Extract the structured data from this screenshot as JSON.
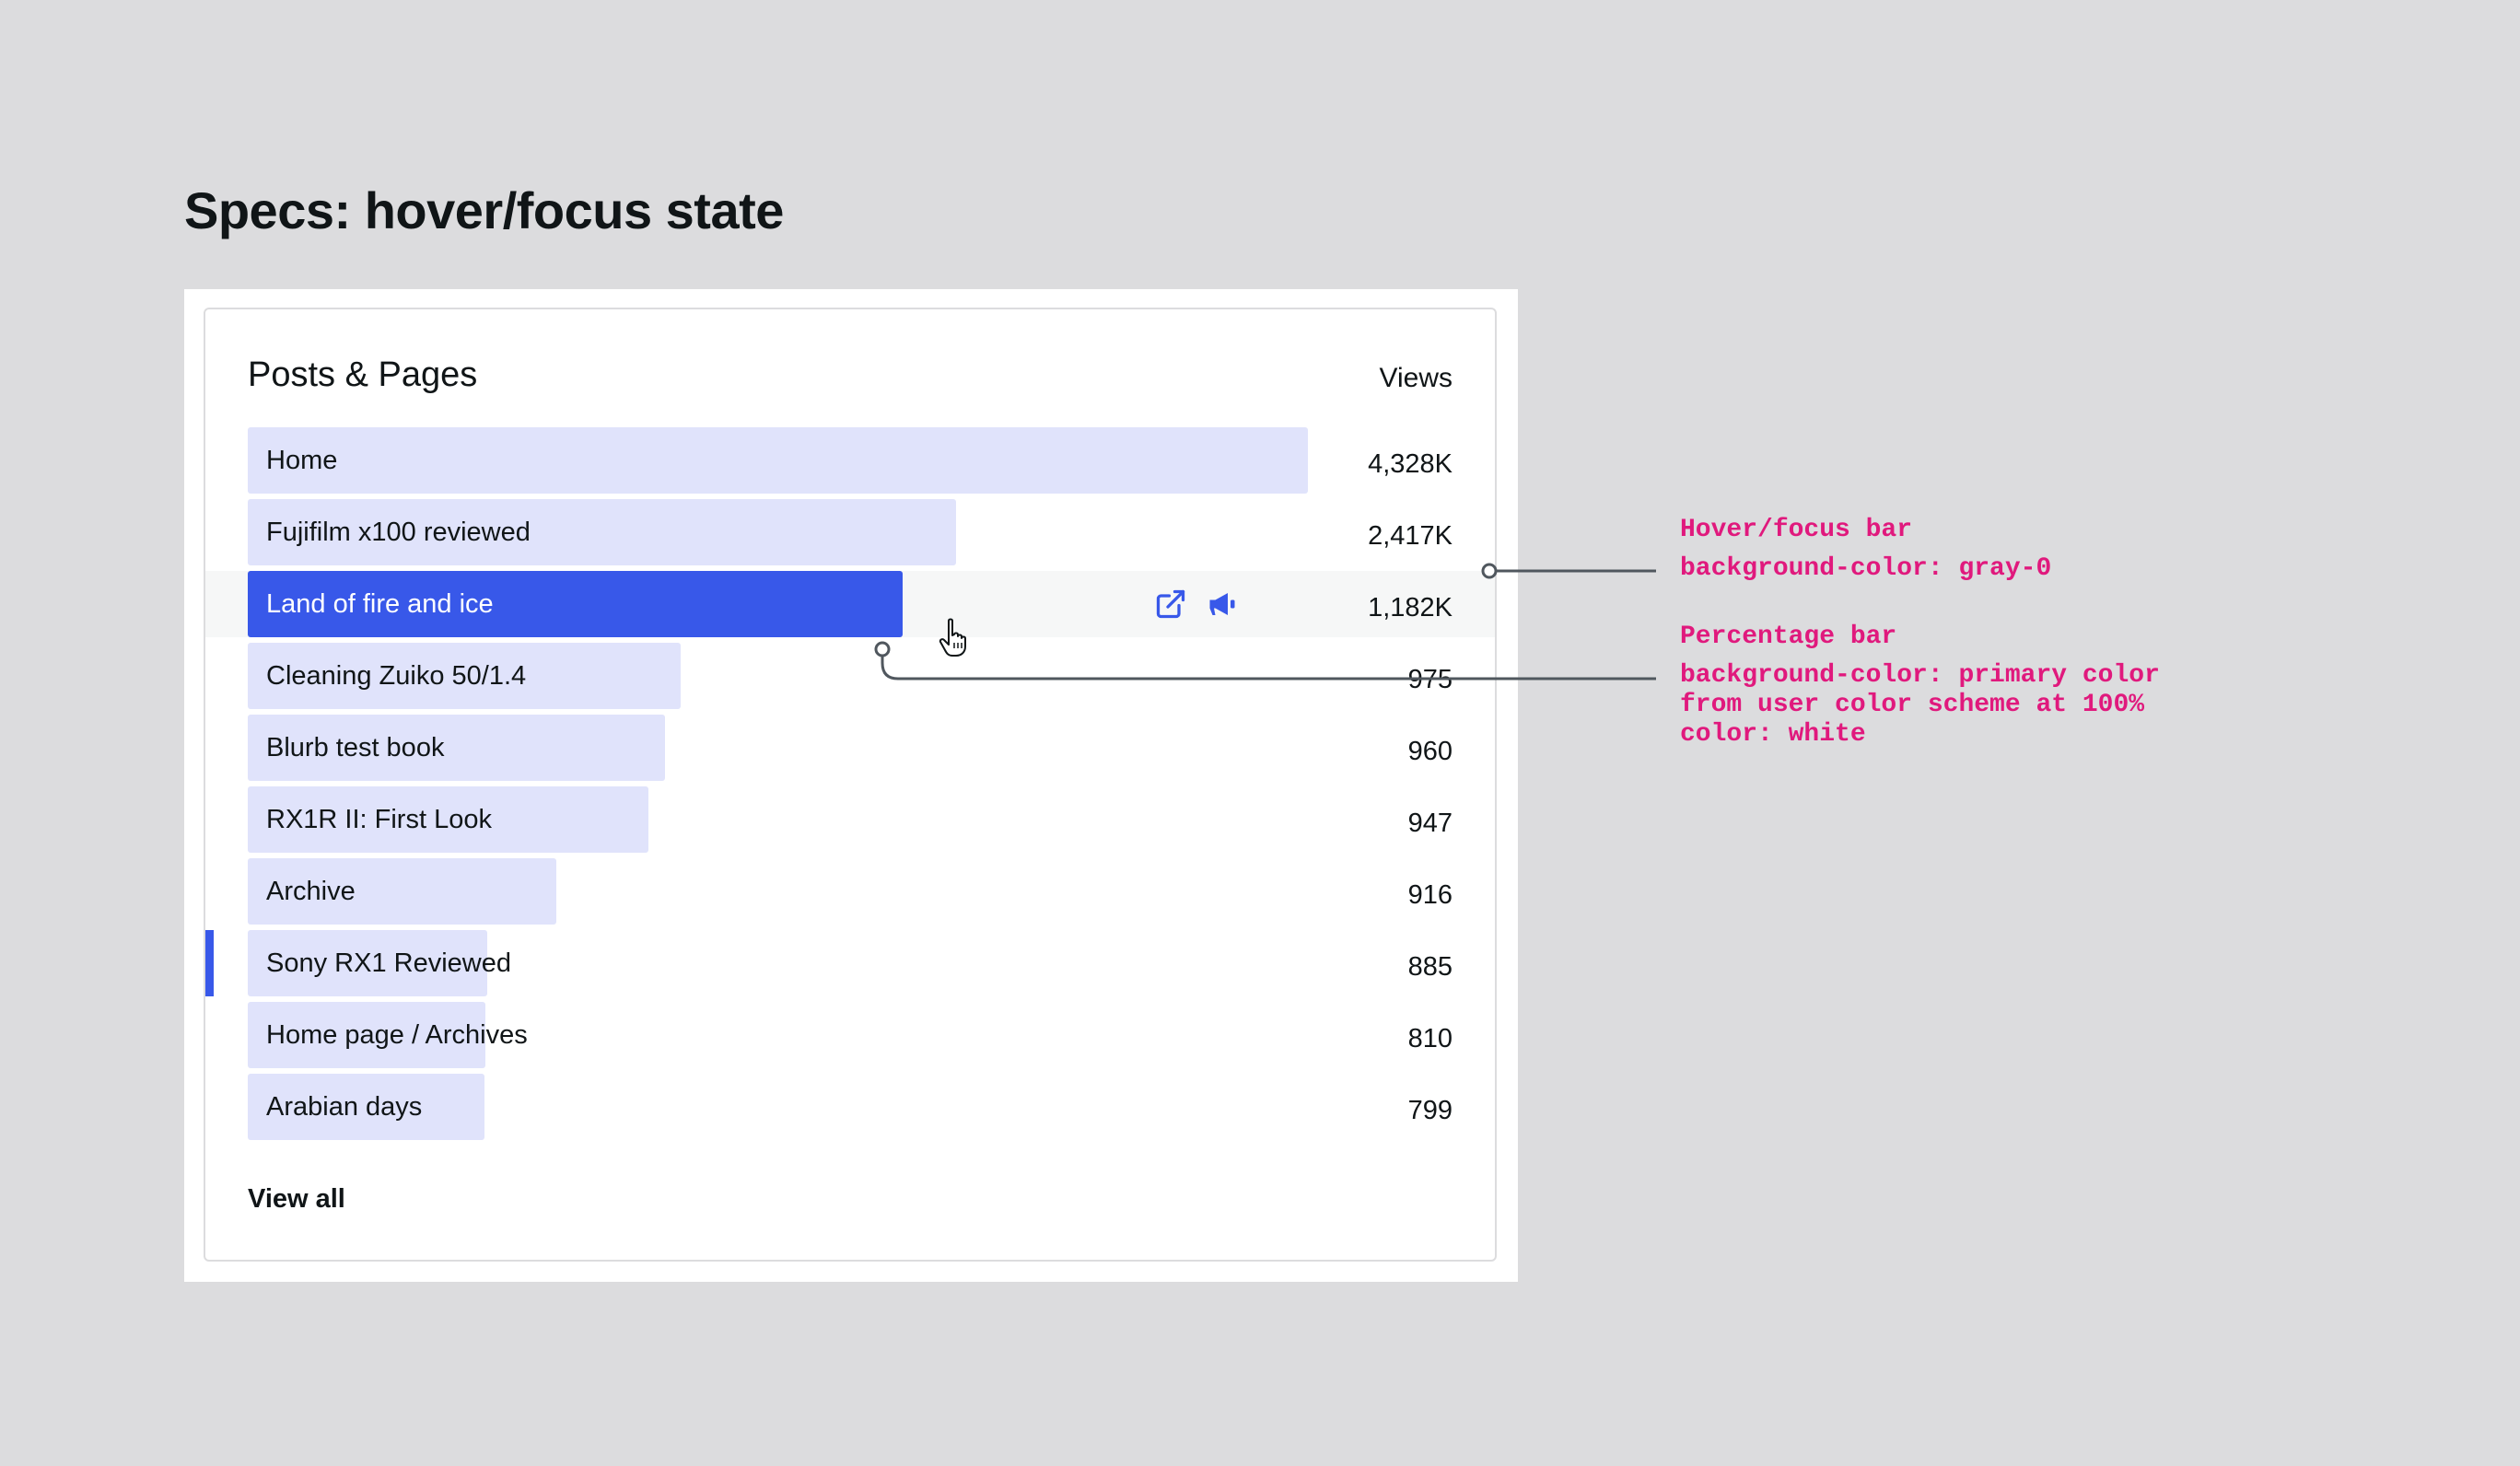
{
  "spec_title": "Specs: hover/focus state",
  "card": {
    "title": "Posts & Pages",
    "column_header": "Views",
    "view_all_label": "View all",
    "rows": [
      {
        "label": "Home",
        "value": "4,328K",
        "percent": 100
      },
      {
        "label": "Fujifilm x100 reviewed",
        "value": "2,417K",
        "percent": 66.8
      },
      {
        "label": "Land of fire and ice",
        "value": "1,182K",
        "percent": 61.8,
        "state": "hover"
      },
      {
        "label": "Cleaning Zuiko 50/1.4",
        "value": "975",
        "percent": 40.8
      },
      {
        "label": "Blurb test book",
        "value": "960",
        "percent": 39.4
      },
      {
        "label": "RX1R II: First Look",
        "value": "947",
        "percent": 37.8
      },
      {
        "label": "Archive",
        "value": "916",
        "percent": 29.1
      },
      {
        "label": "Sony RX1 Reviewed",
        "value": "885",
        "percent": 22.6,
        "state": "focus-marker"
      },
      {
        "label": "Home page / Archives",
        "value": "810",
        "percent": 22.4
      },
      {
        "label": "Arabian days",
        "value": "799",
        "percent": 22.3
      }
    ],
    "hover_icons": [
      "external-link-icon",
      "megaphone-icon"
    ]
  },
  "annotations": {
    "hover": {
      "title": "Hover/focus bar",
      "body": "background-color: gray-0"
    },
    "percentage": {
      "title": "Percentage bar",
      "body_lines": [
        "background-color: primary color",
        "from user color scheme at 100%",
        "color: white"
      ]
    }
  },
  "colors": {
    "page_background": "#dcdcde",
    "bar_light": "#e0e3fb",
    "primary": "#3858e9",
    "hover_row": "#f6f7f7",
    "annotation": "#e0197d",
    "leader": "#50575e"
  }
}
